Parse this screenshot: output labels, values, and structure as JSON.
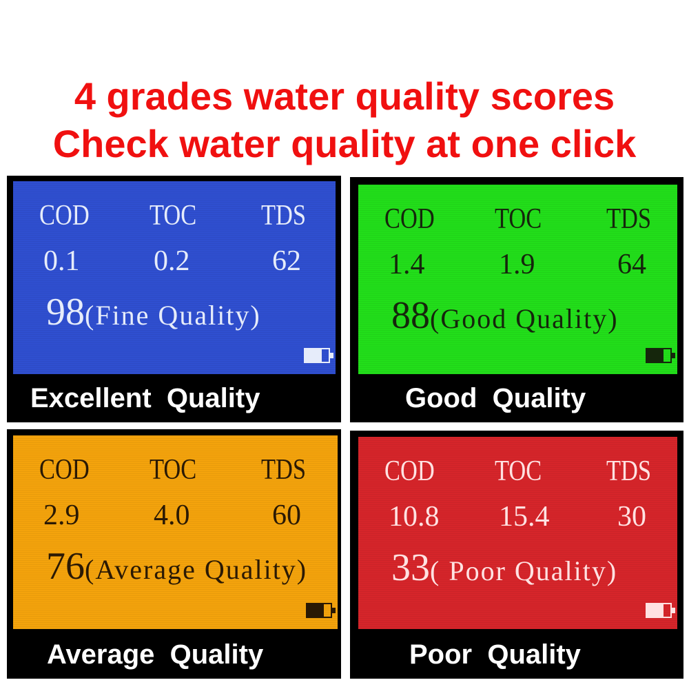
{
  "headline": {
    "line1": "4 grades water quality scores",
    "line2": "Check water quality at one click"
  },
  "colors": {
    "headline": "#f01010"
  },
  "panels": [
    {
      "screen_color": "#2f4fd0",
      "text_color": "#e6ecfa",
      "labels": [
        "COD",
        "TOC",
        "TDS"
      ],
      "values": [
        "0.1",
        "0.2",
        "62"
      ],
      "score": "98",
      "quality_text": "(Fine Quality)",
      "caption": "Excellent  Quality",
      "battery_icon": "battery-icon"
    },
    {
      "screen_color": "#22de1a",
      "text_color": "#15260c",
      "labels": [
        "COD",
        "TOC",
        "TDS"
      ],
      "values": [
        "1.4",
        "1.9",
        "64"
      ],
      "score": "88",
      "quality_text": "(Good Quality)",
      "caption": "Good  Quality",
      "battery_icon": "battery-icon"
    },
    {
      "screen_color": "#f4a30c",
      "text_color": "#2a1904",
      "labels": [
        "COD",
        "TOC",
        "TDS"
      ],
      "values": [
        "2.9",
        "4.0",
        "60"
      ],
      "score": "76",
      "quality_text": "(Average Quality)",
      "caption": "Average  Quality",
      "battery_icon": "battery-icon"
    },
    {
      "screen_color": "#d6252a",
      "text_color": "#ffe2e2",
      "labels": [
        "COD",
        "TOC",
        "TDS"
      ],
      "values": [
        "10.8",
        "15.4",
        "30"
      ],
      "score": "33",
      "quality_text": "( Poor Quality)",
      "caption": "Poor  Quality",
      "battery_icon": "battery-icon"
    }
  ]
}
